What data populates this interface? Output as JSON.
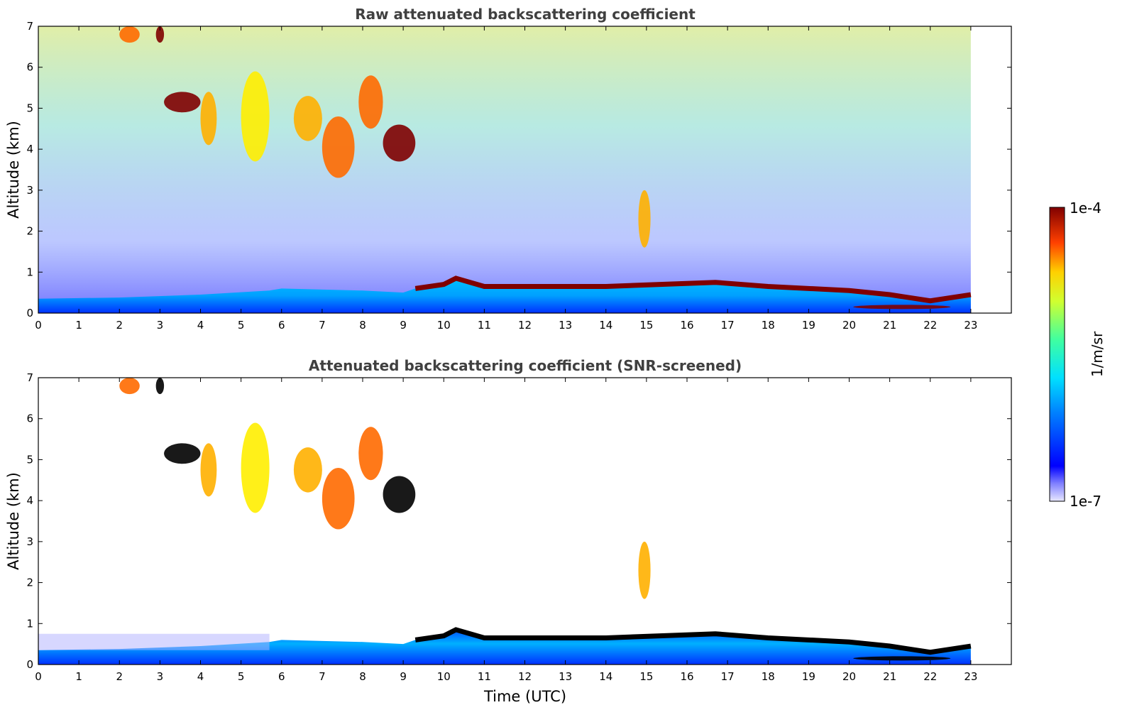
{
  "chart_data": [
    {
      "type": "heatmap",
      "title": "Raw attenuated backscattering coefficient",
      "xlabel": "",
      "ylabel": "Altitude (km)",
      "xlim": [
        0,
        24
      ],
      "ylim": [
        0,
        7
      ],
      "x_ticks": [
        0,
        1,
        2,
        3,
        4,
        5,
        6,
        7,
        8,
        9,
        10,
        11,
        12,
        13,
        14,
        15,
        16,
        17,
        18,
        19,
        20,
        21,
        22,
        23
      ],
      "y_ticks": [
        0,
        1,
        2,
        3,
        4,
        5,
        6,
        7
      ],
      "data_end_time": 23.0,
      "boundary_layer_top_km": [
        [
          0,
          0.35
        ],
        [
          2,
          0.38
        ],
        [
          4,
          0.45
        ],
        [
          5.7,
          0.55
        ],
        [
          6,
          0.6
        ],
        [
          8,
          0.55
        ],
        [
          9,
          0.5
        ],
        [
          9.3,
          0.6
        ],
        [
          10,
          0.7
        ],
        [
          10.3,
          0.85
        ],
        [
          11,
          0.65
        ],
        [
          14,
          0.65
        ],
        [
          16.7,
          0.75
        ],
        [
          18,
          0.65
        ],
        [
          20,
          0.55
        ],
        [
          21,
          0.45
        ],
        [
          22,
          0.3
        ],
        [
          23,
          0.45
        ]
      ],
      "clouds": [
        {
          "t_start": 2.0,
          "t_end": 2.5,
          "alt_km": [
            6.6,
            7.0
          ],
          "level": "high"
        },
        {
          "t_start": 2.9,
          "t_end": 3.1,
          "alt_km": [
            6.6,
            7.0
          ],
          "level": "very-high"
        },
        {
          "t_start": 3.1,
          "t_end": 4.0,
          "alt_km": [
            4.9,
            5.4
          ],
          "level": "very-high"
        },
        {
          "t_start": 4.0,
          "t_end": 4.4,
          "alt_km": [
            4.1,
            5.4
          ],
          "level": "medium-high"
        },
        {
          "t_start": 5.0,
          "t_end": 5.7,
          "alt_km": [
            3.7,
            5.9
          ],
          "level": "medium"
        },
        {
          "t_start": 6.3,
          "t_end": 7.0,
          "alt_km": [
            4.2,
            5.3
          ],
          "level": "medium-high"
        },
        {
          "t_start": 7.0,
          "t_end": 7.8,
          "alt_km": [
            3.3,
            4.8
          ],
          "level": "high"
        },
        {
          "t_start": 7.9,
          "t_end": 8.5,
          "alt_km": [
            4.5,
            5.8
          ],
          "level": "high"
        },
        {
          "t_start": 8.5,
          "t_end": 9.3,
          "alt_km": [
            3.7,
            4.6
          ],
          "level": "very-high"
        },
        {
          "t_start": 14.8,
          "t_end": 15.1,
          "alt_km": [
            1.6,
            3.0
          ],
          "level": "medium-high"
        },
        {
          "t_start": 20.1,
          "t_end": 22.5,
          "alt_km": [
            0.1,
            0.2
          ],
          "level": "very-high"
        }
      ]
    },
    {
      "type": "heatmap",
      "title": "Attenuated backscattering coefficient (SNR-screened)",
      "xlabel": "Time (UTC)",
      "ylabel": "Altitude (km)",
      "xlim": [
        0,
        24
      ],
      "ylim": [
        0,
        7
      ],
      "x_ticks": [
        0,
        1,
        2,
        3,
        4,
        5,
        6,
        7,
        8,
        9,
        10,
        11,
        12,
        13,
        14,
        15,
        16,
        17,
        18,
        19,
        20,
        21,
        22,
        23
      ],
      "y_ticks": [
        0,
        1,
        2,
        3,
        4,
        5,
        6,
        7
      ],
      "data_end_time": 23.0
    }
  ],
  "colorbar": {
    "label": "1/m/sr",
    "max_label": "1e-4",
    "min_label": "1e-7",
    "min": 1e-07,
    "max": 0.0001,
    "scale": "log",
    "colormap": "jet"
  },
  "colors": {
    "title": "#404040",
    "very_high": "#800000",
    "high": "#ff6a00",
    "medium": "#ffee00",
    "low": "#33ddaa",
    "boundary_layer": "#0040ff",
    "background": "#ffffff"
  }
}
